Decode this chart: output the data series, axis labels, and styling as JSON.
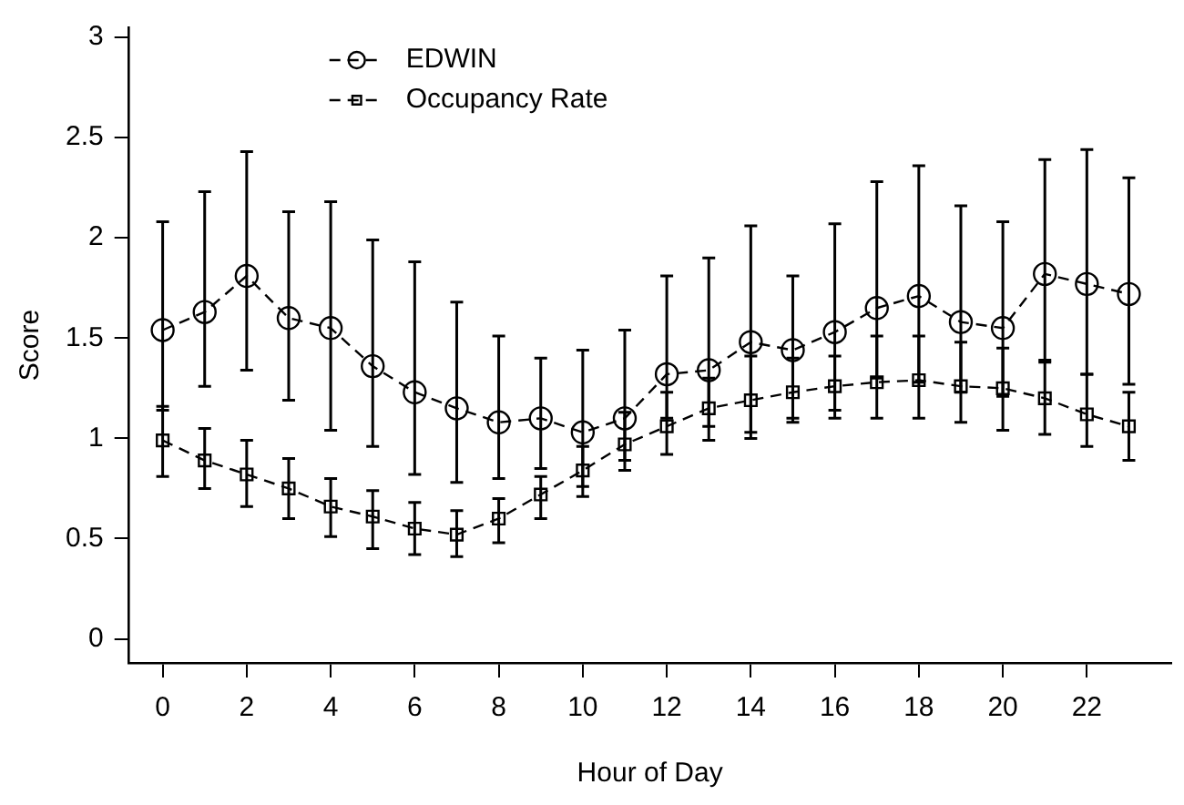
{
  "chart_data": {
    "type": "line",
    "xlabel": "Hour of Day",
    "ylabel": "Score",
    "x": [
      0,
      1,
      2,
      3,
      4,
      5,
      6,
      7,
      8,
      9,
      10,
      11,
      12,
      13,
      14,
      15,
      16,
      17,
      18,
      19,
      20,
      21,
      22,
      23
    ],
    "xlim": [
      -0.8,
      24
    ],
    "xticks": [
      0,
      2,
      4,
      6,
      8,
      10,
      12,
      14,
      16,
      18,
      20,
      22
    ],
    "ylim": [
      -0.12,
      3.05
    ],
    "yticks": [
      0,
      0.5,
      1,
      1.5,
      2,
      2.5,
      3
    ],
    "grid": false,
    "legend": "top left",
    "line_style": "dashed",
    "series": [
      {
        "name": "EDWIN",
        "color": "#000000",
        "marker": "circle",
        "values": [
          1.54,
          1.63,
          1.81,
          1.6,
          1.55,
          1.36,
          1.23,
          1.15,
          1.08,
          1.1,
          1.03,
          1.1,
          1.32,
          1.34,
          1.48,
          1.44,
          1.53,
          1.65,
          1.71,
          1.58,
          1.55,
          1.82,
          1.77,
          1.72
        ],
        "errors": [
          [
            1.14,
            2.08
          ],
          [
            1.26,
            2.23
          ],
          [
            1.34,
            2.43
          ],
          [
            1.19,
            2.13
          ],
          [
            1.04,
            2.18
          ],
          [
            0.96,
            1.99
          ],
          [
            0.82,
            1.88
          ],
          [
            0.78,
            1.68
          ],
          [
            0.8,
            1.51
          ],
          [
            0.85,
            1.4
          ],
          [
            0.76,
            1.44
          ],
          [
            0.89,
            1.54
          ],
          [
            1.1,
            1.81
          ],
          [
            1.06,
            1.9
          ],
          [
            1.0,
            2.06
          ],
          [
            1.1,
            1.81
          ],
          [
            1.14,
            2.07
          ],
          [
            1.3,
            2.28
          ],
          [
            1.28,
            2.36
          ],
          [
            1.23,
            2.16
          ],
          [
            1.21,
            2.08
          ],
          [
            1.38,
            2.39
          ],
          [
            1.32,
            2.44
          ],
          [
            1.27,
            2.3
          ]
        ]
      },
      {
        "name": "Occupancy Rate",
        "color": "#000000",
        "marker": "square",
        "values": [
          0.99,
          0.89,
          0.82,
          0.75,
          0.66,
          0.61,
          0.55,
          0.52,
          0.6,
          0.72,
          0.84,
          0.97,
          1.06,
          1.15,
          1.19,
          1.23,
          1.26,
          1.28,
          1.29,
          1.26,
          1.25,
          1.2,
          1.12,
          1.06
        ],
        "errors": [
          [
            0.81,
            1.16
          ],
          [
            0.75,
            1.05
          ],
          [
            0.66,
            0.99
          ],
          [
            0.6,
            0.9
          ],
          [
            0.51,
            0.8
          ],
          [
            0.45,
            0.74
          ],
          [
            0.42,
            0.68
          ],
          [
            0.41,
            0.64
          ],
          [
            0.48,
            0.7
          ],
          [
            0.6,
            0.81
          ],
          [
            0.71,
            0.96
          ],
          [
            0.84,
            1.13
          ],
          [
            0.92,
            1.23
          ],
          [
            0.99,
            1.3
          ],
          [
            1.03,
            1.41
          ],
          [
            1.08,
            1.4
          ],
          [
            1.1,
            1.41
          ],
          [
            1.1,
            1.51
          ],
          [
            1.1,
            1.51
          ],
          [
            1.08,
            1.48
          ],
          [
            1.04,
            1.45
          ],
          [
            1.02,
            1.39
          ],
          [
            0.96,
            1.32
          ],
          [
            0.89,
            1.23
          ]
        ]
      }
    ]
  }
}
